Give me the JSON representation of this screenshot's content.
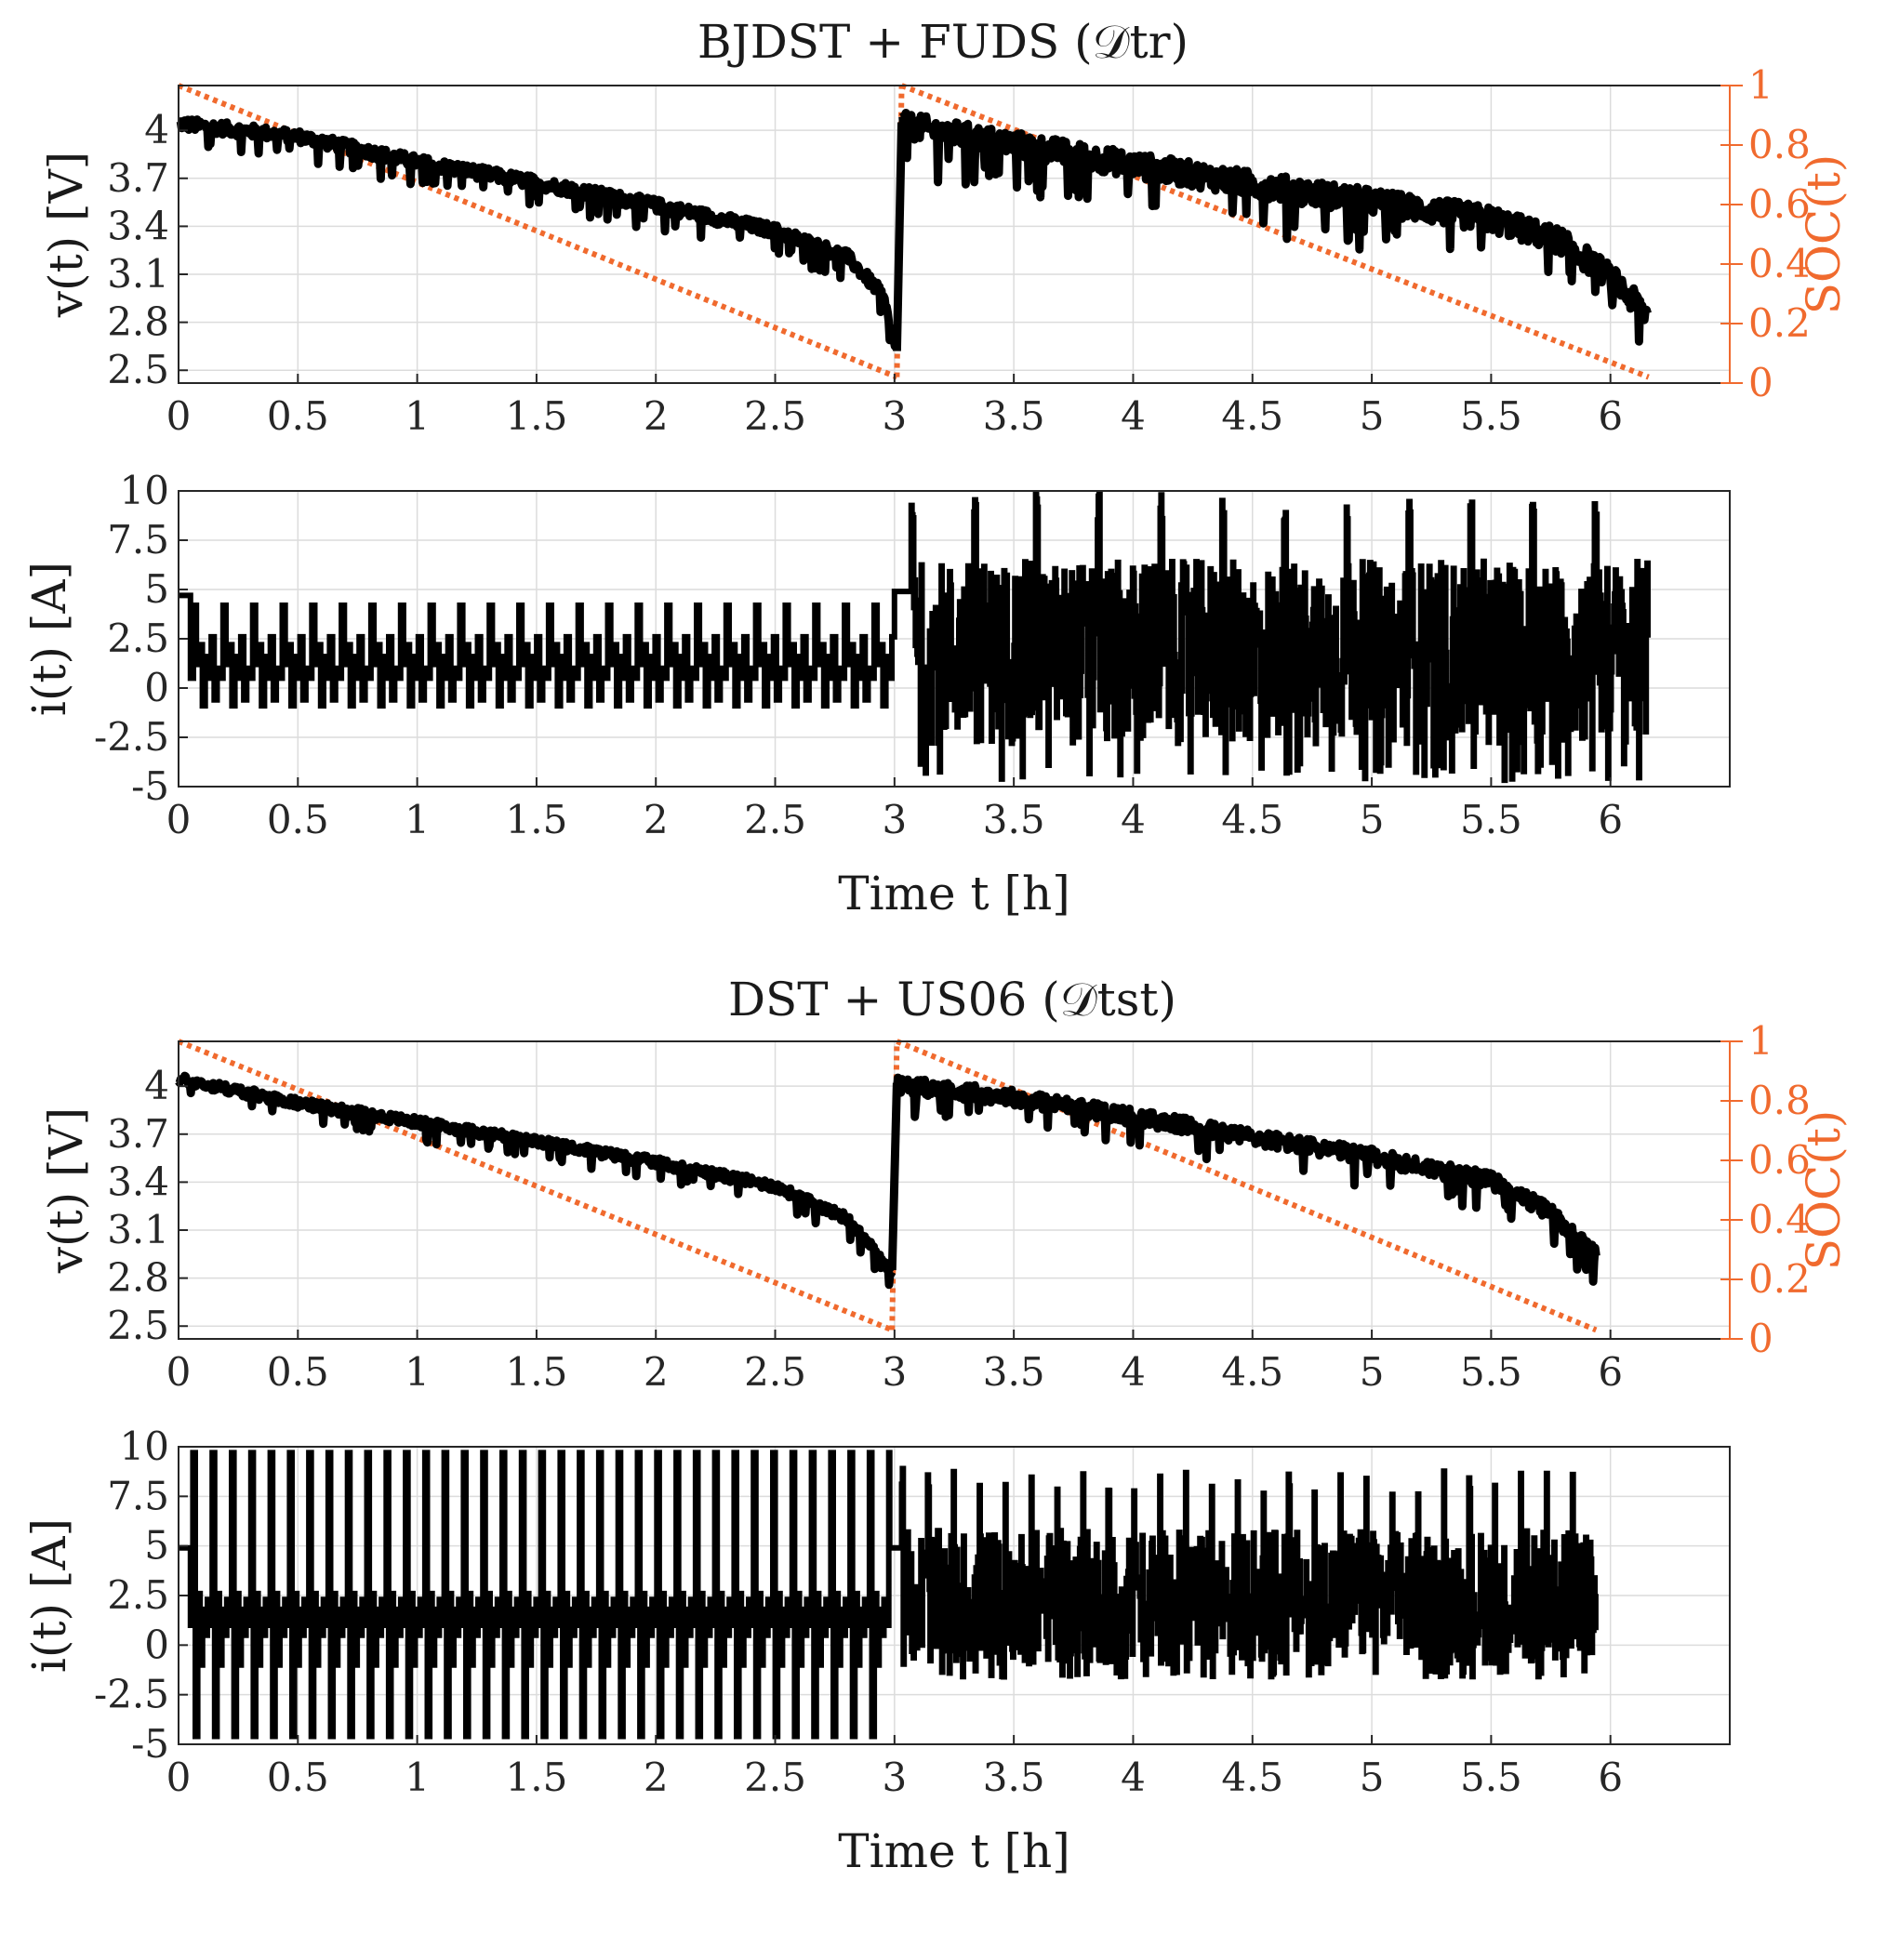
{
  "figure": {
    "background": "#ffffff",
    "voltage_color": "#000000",
    "soc_color": "#f06a2e"
  },
  "chart_data": [
    {
      "panel": "train",
      "type": "line",
      "title": "BJDST + FUDS (𝒟tr)",
      "voltage": {
        "ylabel": "v(t) [V]",
        "ylim": [
          2.42,
          4.28
        ],
        "yticks": [
          "2.5",
          "2.8",
          "3.1",
          "3.4",
          "3.7",
          "4"
        ],
        "xlim": [
          0,
          6.5
        ],
        "xticks": [
          "0",
          "0.5",
          "1",
          "1.5",
          "2",
          "2.5",
          "3",
          "3.5",
          "4",
          "4.5",
          "5",
          "5.5",
          "6"
        ],
        "soc_ylabel": "SOC(t)",
        "soc_ylim": [
          0,
          1
        ],
        "soc_yticks": [
          "0",
          "0.2",
          "0.4",
          "0.6",
          "0.8",
          "1"
        ],
        "segments": [
          {
            "name": "BJDST",
            "t_start": 0.0,
            "t_end": 3.01,
            "v_points": [
              [
                0,
                4.05
              ],
              [
                0.5,
                3.97
              ],
              [
                1.0,
                3.81
              ],
              [
                1.5,
                3.68
              ],
              [
                2.0,
                3.54
              ],
              [
                2.5,
                3.38
              ],
              [
                2.8,
                3.22
              ],
              [
                2.95,
                2.98
              ],
              [
                3.01,
                2.62
              ]
            ],
            "noise": 0.04
          },
          {
            "name": "FUDS",
            "t_start": 3.03,
            "t_end": 6.16,
            "v_points": [
              [
                3.03,
                4.05
              ],
              [
                3.5,
                3.93
              ],
              [
                4.0,
                3.8
              ],
              [
                4.5,
                3.68
              ],
              [
                5.0,
                3.57
              ],
              [
                5.5,
                3.46
              ],
              [
                5.8,
                3.32
              ],
              [
                6.0,
                3.1
              ],
              [
                6.16,
                2.85
              ]
            ],
            "noise": 0.08
          }
        ],
        "soc_segments": [
          {
            "t_start": 0.0,
            "t_end": 3.01,
            "soc_start": 1.0,
            "soc_end": 0.02
          },
          {
            "t_start": 3.03,
            "t_end": 6.16,
            "soc_start": 1.0,
            "soc_end": 0.02
          }
        ]
      },
      "current": {
        "ylabel": "i(t) [A]",
        "xlabel": "Time t [h]",
        "ylim": [
          -5,
          10
        ],
        "yticks": [
          "-5",
          "-2.5",
          "0",
          "2.5",
          "5",
          "7.5",
          "10"
        ],
        "xlim": [
          0,
          6.5
        ],
        "xticks": [
          "0",
          "0.5",
          "1",
          "1.5",
          "2",
          "2.5",
          "3",
          "3.5",
          "4",
          "4.5",
          "5",
          "5.5",
          "6"
        ],
        "segments": [
          {
            "name": "rest",
            "t_start": 0.0,
            "t_end": 0.05,
            "level": 4.7
          },
          {
            "name": "BJDST",
            "t_start": 0.05,
            "t_end": 3.0,
            "period_h": 0.124,
            "levels": [
              0.5,
              4.2,
              1.2,
              2.2,
              -0.9,
              1.6,
              0.5,
              2.6,
              -0.6,
              1.0
            ]
          },
          {
            "name": "rest",
            "t_start": 3.0,
            "t_end": 3.07,
            "level": 4.9
          },
          {
            "name": "FUDS",
            "t_start": 3.07,
            "t_end": 6.16,
            "min": -4.7,
            "max": 9.9,
            "peak_period_h": 0.26
          }
        ]
      }
    },
    {
      "panel": "test",
      "type": "line",
      "title": "DST + US06 (𝒟tst)",
      "voltage": {
        "ylabel": "v(t) [V]",
        "ylim": [
          2.42,
          4.28
        ],
        "yticks": [
          "2.5",
          "2.8",
          "3.1",
          "3.4",
          "3.7",
          "4"
        ],
        "xlim": [
          0,
          6.5
        ],
        "xticks": [
          "0",
          "0.5",
          "1",
          "1.5",
          "2",
          "2.5",
          "3",
          "3.5",
          "4",
          "4.5",
          "5",
          "5.5",
          "6"
        ],
        "soc_ylabel": "SOC(t)",
        "soc_ylim": [
          0,
          1
        ],
        "soc_yticks": [
          "0",
          "0.2",
          "0.4",
          "0.6",
          "0.8",
          "1"
        ],
        "segments": [
          {
            "name": "DST",
            "t_start": 0.0,
            "t_end": 2.99,
            "v_points": [
              [
                0,
                4.05
              ],
              [
                0.5,
                3.9
              ],
              [
                1.0,
                3.78
              ],
              [
                1.5,
                3.66
              ],
              [
                2.0,
                3.53
              ],
              [
                2.5,
                3.38
              ],
              [
                2.8,
                3.18
              ],
              [
                2.99,
                2.85
              ]
            ],
            "noise": 0.03
          },
          {
            "name": "US06",
            "t_start": 3.01,
            "t_end": 5.94,
            "v_points": [
              [
                3.01,
                4.02
              ],
              [
                3.5,
                3.94
              ],
              [
                4.0,
                3.82
              ],
              [
                4.5,
                3.69
              ],
              [
                5.0,
                3.57
              ],
              [
                5.5,
                3.42
              ],
              [
                5.75,
                3.22
              ],
              [
                5.94,
                2.95
              ]
            ],
            "noise": 0.05
          }
        ],
        "soc_segments": [
          {
            "t_start": 0.0,
            "t_end": 2.99,
            "soc_start": 1.0,
            "soc_end": 0.03
          },
          {
            "t_start": 3.01,
            "t_end": 5.94,
            "soc_start": 1.0,
            "soc_end": 0.03
          }
        ]
      },
      "current": {
        "ylabel": "i(t) [A]",
        "xlabel": "Time t [h]",
        "ylim": [
          -5,
          10
        ],
        "yticks": [
          "-5",
          "-2.5",
          "0",
          "2.5",
          "5",
          "7.5",
          "10"
        ],
        "xlim": [
          0,
          6.5
        ],
        "xticks": [
          "0",
          "0.5",
          "1",
          "1.5",
          "2",
          "2.5",
          "3",
          "3.5",
          "4",
          "4.5",
          "5",
          "5.5",
          "6"
        ],
        "segments": [
          {
            "name": "rest",
            "t_start": 0.0,
            "t_end": 0.05,
            "level": 4.9
          },
          {
            "name": "DST",
            "t_start": 0.05,
            "t_end": 2.98,
            "period_h": 0.081,
            "levels": [
              1.0,
              9.7,
              -4.6,
              2.6,
              -1.0,
              1.8,
              0.5,
              2.3
            ]
          },
          {
            "name": "rest",
            "t_start": 2.98,
            "t_end": 3.03,
            "level": 4.9
          },
          {
            "name": "US06",
            "t_start": 3.03,
            "t_end": 5.94,
            "min": -1.6,
            "max": 8.9,
            "peak_period_h": 0.108
          }
        ]
      }
    }
  ]
}
